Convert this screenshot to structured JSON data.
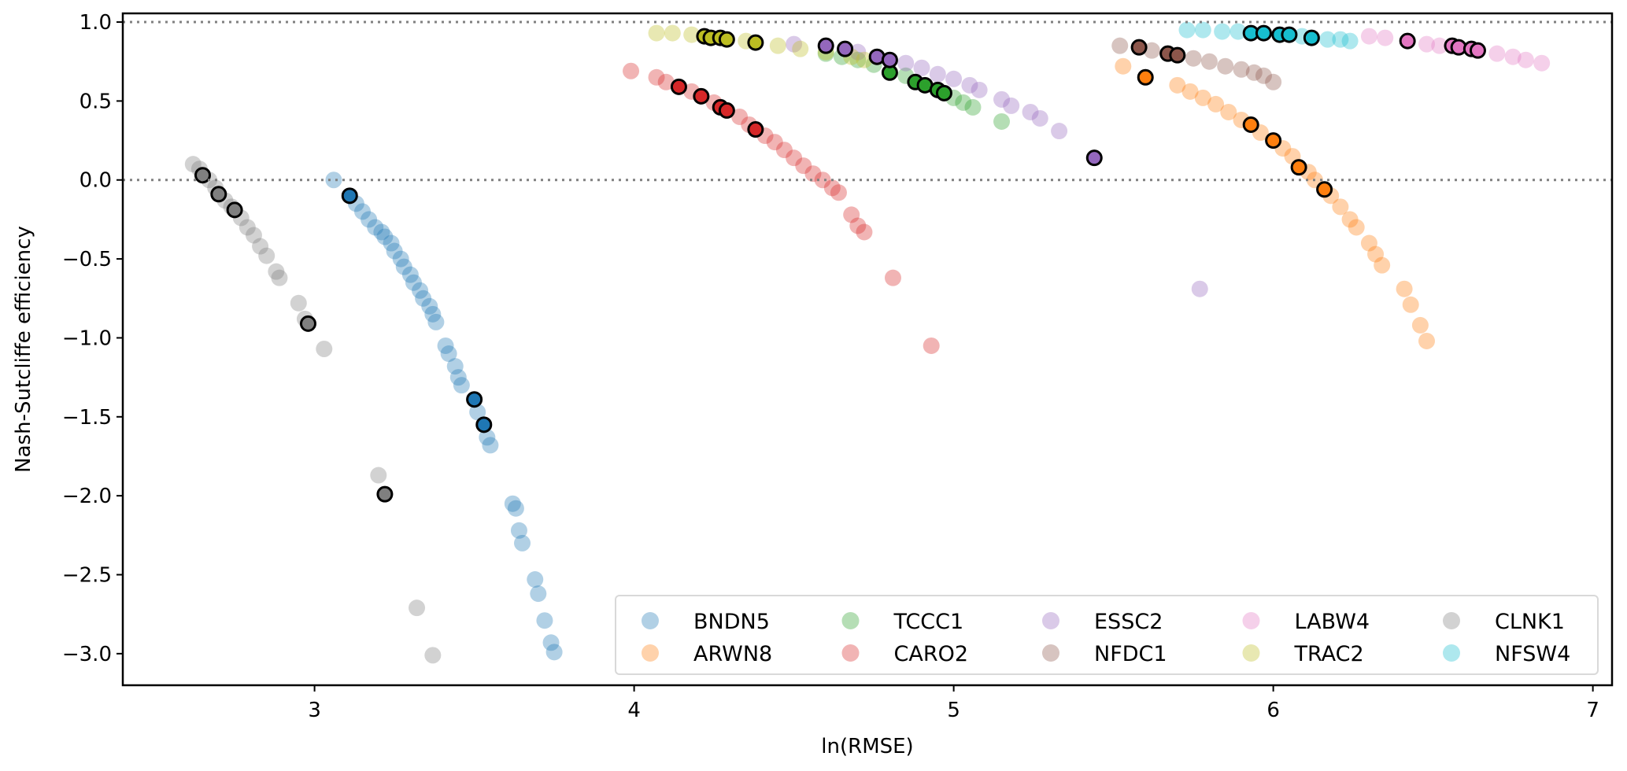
{
  "chart_data": {
    "type": "scatter",
    "title": "",
    "xlabel": "ln(RMSE)",
    "ylabel": "Nash-Sutcliffe efficiency",
    "xlim": [
      2.4,
      7.06
    ],
    "ylim": [
      -3.2,
      1.055
    ],
    "xticks": [
      3,
      4,
      5,
      6,
      7
    ],
    "xtick_labels": [
      "3",
      "4",
      "5",
      "6",
      "7"
    ],
    "yticks": [
      1.0,
      0.5,
      0.0,
      -0.5,
      -1.0,
      -1.5,
      -2.0,
      -2.5,
      -3.0
    ],
    "ytick_labels": [
      "1.0",
      "0.5",
      "0.0",
      "−0.5",
      "−1.0",
      "−1.5",
      "−2.0",
      "−2.5",
      "−3.0"
    ],
    "reference_lines": [
      {
        "y": 1.0,
        "style": "dotted",
        "color": "#808080"
      },
      {
        "y": 0.0,
        "style": "dotted",
        "color": "#808080"
      }
    ],
    "grid": false,
    "legend": {
      "placement": "lower-right",
      "columns": 6
    },
    "series": [
      {
        "name": "BNDN5",
        "color": "#1f77b4",
        "points": [
          [
            3.06,
            0.0,
            0
          ],
          [
            3.11,
            -0.1,
            1
          ],
          [
            3.13,
            -0.15,
            0
          ],
          [
            3.15,
            -0.2,
            0
          ],
          [
            3.17,
            -0.25,
            0
          ],
          [
            3.19,
            -0.3,
            0
          ],
          [
            3.21,
            -0.33,
            0
          ],
          [
            3.22,
            -0.36,
            0
          ],
          [
            3.24,
            -0.4,
            0
          ],
          [
            3.25,
            -0.45,
            0
          ],
          [
            3.27,
            -0.5,
            0
          ],
          [
            3.28,
            -0.55,
            0
          ],
          [
            3.3,
            -0.6,
            0
          ],
          [
            3.31,
            -0.65,
            0
          ],
          [
            3.33,
            -0.7,
            0
          ],
          [
            3.34,
            -0.75,
            0
          ],
          [
            3.36,
            -0.8,
            0
          ],
          [
            3.37,
            -0.85,
            0
          ],
          [
            3.38,
            -0.9,
            0
          ],
          [
            3.41,
            -1.05,
            0
          ],
          [
            3.42,
            -1.1,
            0
          ],
          [
            3.44,
            -1.18,
            0
          ],
          [
            3.45,
            -1.25,
            0
          ],
          [
            3.46,
            -1.3,
            0
          ],
          [
            3.5,
            -1.39,
            1
          ],
          [
            3.51,
            -1.47,
            0
          ],
          [
            3.53,
            -1.55,
            1
          ],
          [
            3.54,
            -1.63,
            0
          ],
          [
            3.55,
            -1.68,
            0
          ],
          [
            3.62,
            -2.05,
            0
          ],
          [
            3.63,
            -2.08,
            0
          ],
          [
            3.64,
            -2.22,
            0
          ],
          [
            3.65,
            -2.3,
            0
          ],
          [
            3.69,
            -2.53,
            0
          ],
          [
            3.7,
            -2.62,
            0
          ],
          [
            3.72,
            -2.79,
            0
          ],
          [
            3.74,
            -2.93,
            0
          ],
          [
            3.75,
            -2.99,
            0
          ]
        ]
      },
      {
        "name": "ARWN8",
        "color": "#ff7f0e",
        "points": [
          [
            5.53,
            0.72,
            0
          ],
          [
            5.6,
            0.65,
            1
          ],
          [
            5.7,
            0.6,
            0
          ],
          [
            5.74,
            0.56,
            0
          ],
          [
            5.78,
            0.52,
            0
          ],
          [
            5.82,
            0.48,
            0
          ],
          [
            5.86,
            0.43,
            0
          ],
          [
            5.9,
            0.38,
            0
          ],
          [
            5.93,
            0.35,
            1
          ],
          [
            5.96,
            0.3,
            0
          ],
          [
            6.0,
            0.25,
            1
          ],
          [
            6.03,
            0.2,
            0
          ],
          [
            6.06,
            0.15,
            0
          ],
          [
            6.08,
            0.08,
            1
          ],
          [
            6.11,
            0.05,
            0
          ],
          [
            6.13,
            0.0,
            0
          ],
          [
            6.16,
            -0.06,
            1
          ],
          [
            6.18,
            -0.1,
            0
          ],
          [
            6.21,
            -0.17,
            0
          ],
          [
            6.24,
            -0.25,
            0
          ],
          [
            6.26,
            -0.3,
            0
          ],
          [
            6.3,
            -0.4,
            0
          ],
          [
            6.32,
            -0.47,
            0
          ],
          [
            6.34,
            -0.54,
            0
          ],
          [
            6.41,
            -0.69,
            0
          ],
          [
            6.43,
            -0.79,
            0
          ],
          [
            6.46,
            -0.92,
            0
          ],
          [
            6.48,
            -1.02,
            0
          ]
        ]
      },
      {
        "name": "TCCC1",
        "color": "#2ca02c",
        "points": [
          [
            4.6,
            0.8,
            0
          ],
          [
            4.65,
            0.78,
            0
          ],
          [
            4.7,
            0.76,
            0
          ],
          [
            4.75,
            0.73,
            0
          ],
          [
            4.8,
            0.68,
            1
          ],
          [
            4.85,
            0.66,
            0
          ],
          [
            4.88,
            0.62,
            1
          ],
          [
            4.91,
            0.6,
            1
          ],
          [
            4.95,
            0.57,
            1
          ],
          [
            4.97,
            0.55,
            1
          ],
          [
            5.0,
            0.52,
            0
          ],
          [
            5.03,
            0.49,
            0
          ],
          [
            5.06,
            0.46,
            0
          ],
          [
            5.15,
            0.37,
            0
          ]
        ]
      },
      {
        "name": "CARO2",
        "color": "#d62728",
        "points": [
          [
            3.99,
            0.69,
            0
          ],
          [
            4.07,
            0.65,
            0
          ],
          [
            4.1,
            0.62,
            0
          ],
          [
            4.14,
            0.59,
            1
          ],
          [
            4.18,
            0.56,
            0
          ],
          [
            4.21,
            0.53,
            1
          ],
          [
            4.25,
            0.49,
            0
          ],
          [
            4.27,
            0.46,
            1
          ],
          [
            4.29,
            0.44,
            1
          ],
          [
            4.33,
            0.4,
            0
          ],
          [
            4.36,
            0.35,
            0
          ],
          [
            4.38,
            0.32,
            1
          ],
          [
            4.41,
            0.28,
            0
          ],
          [
            4.44,
            0.24,
            0
          ],
          [
            4.47,
            0.19,
            0
          ],
          [
            4.5,
            0.14,
            0
          ],
          [
            4.53,
            0.09,
            0
          ],
          [
            4.56,
            0.04,
            0
          ],
          [
            4.59,
            0.0,
            0
          ],
          [
            4.62,
            -0.05,
            0
          ],
          [
            4.64,
            -0.08,
            0
          ],
          [
            4.68,
            -0.22,
            0
          ],
          [
            4.7,
            -0.29,
            0
          ],
          [
            4.72,
            -0.33,
            0
          ],
          [
            4.81,
            -0.62,
            0
          ],
          [
            4.93,
            -1.05,
            0
          ]
        ]
      },
      {
        "name": "ESSC2",
        "color": "#9467bd",
        "points": [
          [
            4.5,
            0.86,
            0
          ],
          [
            4.6,
            0.85,
            1
          ],
          [
            4.66,
            0.83,
            1
          ],
          [
            4.7,
            0.81,
            0
          ],
          [
            4.76,
            0.78,
            1
          ],
          [
            4.8,
            0.76,
            1
          ],
          [
            4.85,
            0.74,
            0
          ],
          [
            4.9,
            0.71,
            0
          ],
          [
            4.95,
            0.67,
            0
          ],
          [
            5.0,
            0.64,
            0
          ],
          [
            5.05,
            0.6,
            0
          ],
          [
            5.08,
            0.57,
            0
          ],
          [
            5.15,
            0.51,
            0
          ],
          [
            5.18,
            0.47,
            0
          ],
          [
            5.24,
            0.43,
            0
          ],
          [
            5.27,
            0.39,
            0
          ],
          [
            5.33,
            0.31,
            0
          ],
          [
            5.44,
            0.14,
            1
          ],
          [
            5.77,
            -0.69,
            0
          ]
        ]
      },
      {
        "name": "NFDC1",
        "color": "#8c564b",
        "points": [
          [
            5.52,
            0.85,
            0
          ],
          [
            5.58,
            0.84,
            1
          ],
          [
            5.62,
            0.82,
            0
          ],
          [
            5.67,
            0.8,
            1
          ],
          [
            5.7,
            0.79,
            1
          ],
          [
            5.75,
            0.77,
            0
          ],
          [
            5.8,
            0.75,
            0
          ],
          [
            5.85,
            0.72,
            0
          ],
          [
            5.9,
            0.7,
            0
          ],
          [
            5.94,
            0.68,
            0
          ],
          [
            5.97,
            0.66,
            0
          ],
          [
            6.0,
            0.62,
            0
          ]
        ]
      },
      {
        "name": "LABW4",
        "color": "#e377c2",
        "points": [
          [
            6.3,
            0.91,
            0
          ],
          [
            6.35,
            0.9,
            0
          ],
          [
            6.42,
            0.88,
            1
          ],
          [
            6.48,
            0.86,
            0
          ],
          [
            6.52,
            0.85,
            0
          ],
          [
            6.56,
            0.85,
            1
          ],
          [
            6.58,
            0.84,
            1
          ],
          [
            6.62,
            0.83,
            1
          ],
          [
            6.64,
            0.82,
            1
          ],
          [
            6.7,
            0.8,
            0
          ],
          [
            6.75,
            0.78,
            0
          ],
          [
            6.79,
            0.76,
            0
          ],
          [
            6.84,
            0.74,
            0
          ]
        ]
      },
      {
        "name": "TRAC2",
        "color": "#bcbd22",
        "points": [
          [
            4.07,
            0.93,
            0
          ],
          [
            4.12,
            0.93,
            0
          ],
          [
            4.18,
            0.92,
            0
          ],
          [
            4.22,
            0.91,
            1
          ],
          [
            4.24,
            0.9,
            1
          ],
          [
            4.27,
            0.9,
            1
          ],
          [
            4.29,
            0.89,
            1
          ],
          [
            4.35,
            0.88,
            0
          ],
          [
            4.38,
            0.87,
            1
          ],
          [
            4.45,
            0.85,
            0
          ],
          [
            4.52,
            0.83,
            0
          ],
          [
            4.6,
            0.81,
            0
          ],
          [
            4.68,
            0.78,
            0
          ],
          [
            4.72,
            0.76,
            0
          ]
        ]
      },
      {
        "name": "CLNK1",
        "color": "#7f7f7f",
        "points": [
          [
            2.62,
            0.1,
            0
          ],
          [
            2.64,
            0.07,
            0
          ],
          [
            2.65,
            0.03,
            1
          ],
          [
            2.67,
            0.0,
            0
          ],
          [
            2.69,
            -0.05,
            0
          ],
          [
            2.7,
            -0.09,
            1
          ],
          [
            2.72,
            -0.13,
            0
          ],
          [
            2.74,
            -0.17,
            0
          ],
          [
            2.75,
            -0.19,
            1
          ],
          [
            2.77,
            -0.24,
            0
          ],
          [
            2.79,
            -0.3,
            0
          ],
          [
            2.81,
            -0.35,
            0
          ],
          [
            2.83,
            -0.42,
            0
          ],
          [
            2.85,
            -0.48,
            0
          ],
          [
            2.88,
            -0.58,
            0
          ],
          [
            2.89,
            -0.62,
            0
          ],
          [
            2.95,
            -0.78,
            0
          ],
          [
            2.97,
            -0.88,
            0
          ],
          [
            2.98,
            -0.91,
            1
          ],
          [
            3.03,
            -1.07,
            0
          ],
          [
            3.2,
            -1.87,
            0
          ],
          [
            3.22,
            -1.99,
            1
          ],
          [
            3.32,
            -2.71,
            0
          ],
          [
            3.37,
            -3.01,
            0
          ]
        ]
      },
      {
        "name": "NFSW4",
        "color": "#17becf",
        "points": [
          [
            5.73,
            0.95,
            0
          ],
          [
            5.78,
            0.95,
            0
          ],
          [
            5.84,
            0.94,
            0
          ],
          [
            5.89,
            0.94,
            0
          ],
          [
            5.93,
            0.93,
            1
          ],
          [
            5.97,
            0.93,
            1
          ],
          [
            6.02,
            0.92,
            1
          ],
          [
            6.05,
            0.92,
            1
          ],
          [
            6.09,
            0.91,
            0
          ],
          [
            6.12,
            0.9,
            1
          ],
          [
            6.17,
            0.89,
            0
          ],
          [
            6.21,
            0.89,
            0
          ],
          [
            6.24,
            0.88,
            0
          ]
        ]
      }
    ]
  }
}
